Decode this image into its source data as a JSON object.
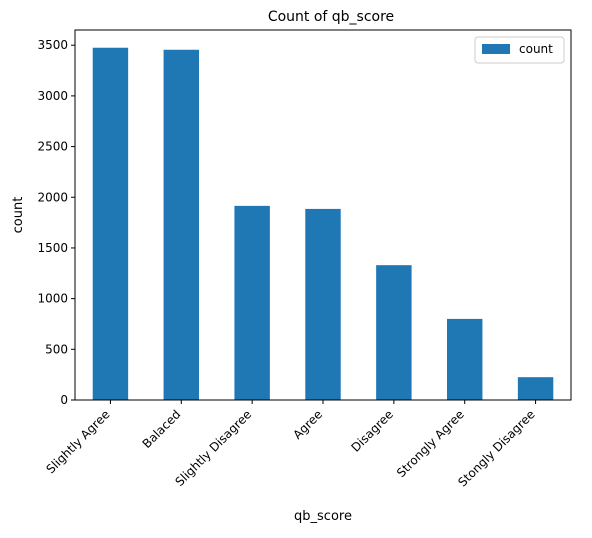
{
  "chart_data": {
    "type": "bar",
    "title": "Count of qb_score",
    "xlabel": "qb_score",
    "ylabel": "count",
    "categories": [
      "Slightly Agree",
      "Balaced",
      "Slightly Disagree",
      "Agree",
      "Disagree",
      "Strongly Agree",
      "Stongly Disagree"
    ],
    "series": [
      {
        "name": "count",
        "values": [
          3475,
          3455,
          1915,
          1885,
          1330,
          800,
          225
        ],
        "color": "#1f77b4"
      }
    ],
    "ylim": [
      0,
      3650
    ],
    "yticks": [
      0,
      500,
      1000,
      1500,
      2000,
      2500,
      3000,
      3500
    ],
    "grid": false,
    "legend": "top-right"
  }
}
